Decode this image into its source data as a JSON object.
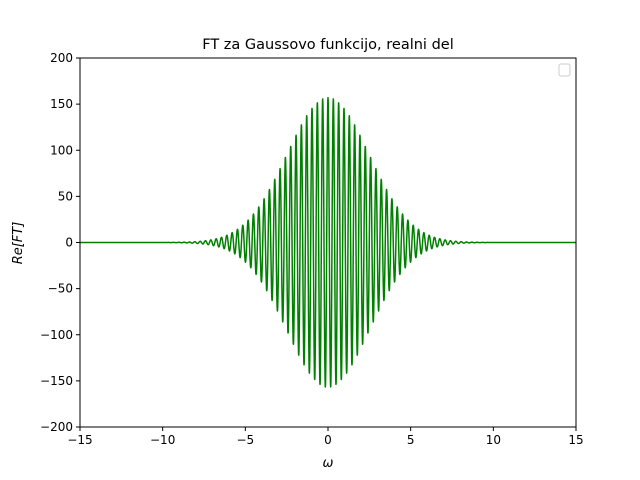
{
  "chart_data": {
    "type": "line",
    "title": "FT za Gaussovo funkcijo, realni del",
    "xlabel": "ω",
    "ylabel": "Re[FT]",
    "xlim": [
      -15,
      15
    ],
    "ylim": [
      -200,
      200
    ],
    "x_ticks": [
      -15,
      -10,
      -5,
      0,
      5,
      10,
      15
    ],
    "x_tick_labels": [
      "−15",
      "−10",
      "−5",
      "0",
      "5",
      "10",
      "15"
    ],
    "y_ticks": [
      -200,
      -150,
      -100,
      -50,
      0,
      50,
      100,
      150,
      200
    ],
    "y_tick_labels": [
      "−200",
      "−150",
      "−100",
      "−50",
      "0",
      "50",
      "100",
      "150",
      "200"
    ],
    "grid": false,
    "legend": {
      "position": "top-right",
      "entries": []
    },
    "series": [
      {
        "color": "#008000",
        "function": "A*exp(-omega^2/(2*sigma^2))*cos(k*omega)",
        "params": {
          "A": 157,
          "sigma": 2.5,
          "k": 19.5
        },
        "x_range": [
          -15,
          15
        ],
        "samples": 3000
      }
    ]
  }
}
